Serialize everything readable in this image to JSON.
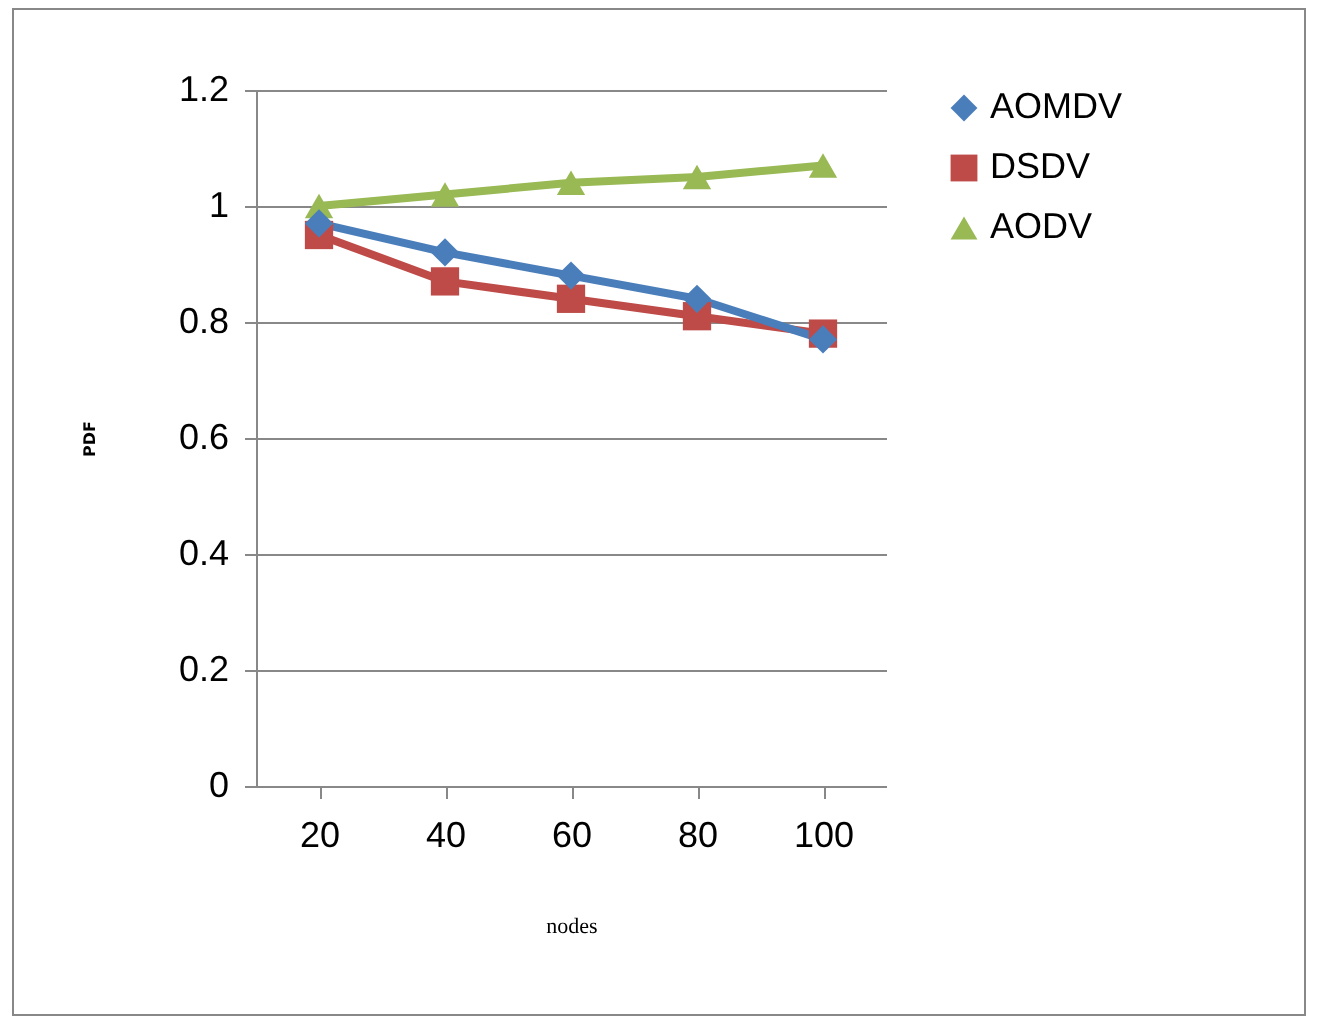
{
  "chart_data": {
    "type": "line",
    "xlabel": "nodes",
    "ylabel": "PDF",
    "categories": [
      "20",
      "40",
      "60",
      "80",
      "100"
    ],
    "series": [
      {
        "name": "AOMDV",
        "color": "#4a7ebb",
        "marker": "diamond",
        "values": [
          0.97,
          0.92,
          0.88,
          0.84,
          0.77
        ]
      },
      {
        "name": "DSDV",
        "color": "#be4b48",
        "marker": "square",
        "values": [
          0.95,
          0.87,
          0.84,
          0.81,
          0.78
        ]
      },
      {
        "name": "AODV",
        "color": "#98b954",
        "marker": "triangle",
        "values": [
          1.0,
          1.02,
          1.04,
          1.05,
          1.07
        ]
      }
    ],
    "ylim": [
      0,
      1.2
    ],
    "yticks": [
      0,
      0.2,
      0.4,
      0.6,
      0.8,
      1,
      1.2
    ],
    "grid": "y",
    "legend": "right"
  }
}
